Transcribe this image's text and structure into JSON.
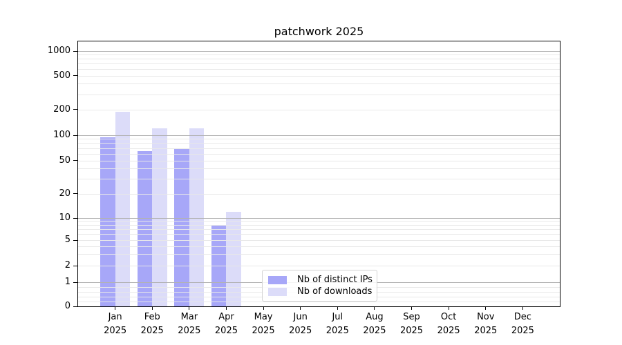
{
  "title": "patchwork 2025",
  "chart_data": {
    "type": "bar",
    "title": "patchwork 2025",
    "categories": [
      "Jan 2025",
      "Feb 2025",
      "Mar 2025",
      "Apr 2025",
      "May 2025",
      "Jun 2025",
      "Jul 2025",
      "Aug 2025",
      "Sep 2025",
      "Oct 2025",
      "Nov 2025",
      "Dec 2025"
    ],
    "x_tick_month": [
      "Jan",
      "Feb",
      "Mar",
      "Apr",
      "May",
      "Jun",
      "Jul",
      "Aug",
      "Sep",
      "Oct",
      "Nov",
      "Dec"
    ],
    "x_tick_year": "2025",
    "series": [
      {
        "name": "Nb of distinct IPs",
        "color": "#a7a7f8",
        "values": [
          95,
          65,
          70,
          8,
          0,
          0,
          0,
          0,
          0,
          0,
          0,
          0
        ]
      },
      {
        "name": "Nb of downloads",
        "color": "#dcdcf9",
        "values": [
          190,
          120,
          120,
          12,
          0,
          0,
          0,
          0,
          0,
          0,
          0,
          0
        ]
      }
    ],
    "yscale": "symlog",
    "yticks": [
      0,
      1,
      2,
      5,
      10,
      20,
      50,
      100,
      200,
      500,
      1000
    ],
    "ylim": [
      0,
      1300
    ],
    "xlabel": "",
    "ylabel": "",
    "grid": "on",
    "legend_position": "lower-center"
  },
  "legend": {
    "items": [
      {
        "label": "Nb of distinct IPs",
        "color": "#a7a7f8"
      },
      {
        "label": "Nb of downloads",
        "color": "#dcdcf9"
      }
    ]
  },
  "colors": {
    "bar_distinct_ips": "#a7a7f8",
    "bar_downloads": "#dcdcf9",
    "grid_major": "#b2b2b2",
    "grid_minor": "#e8e8e8",
    "spine": "#000000",
    "background": "#ffffff",
    "text": "#000000"
  }
}
